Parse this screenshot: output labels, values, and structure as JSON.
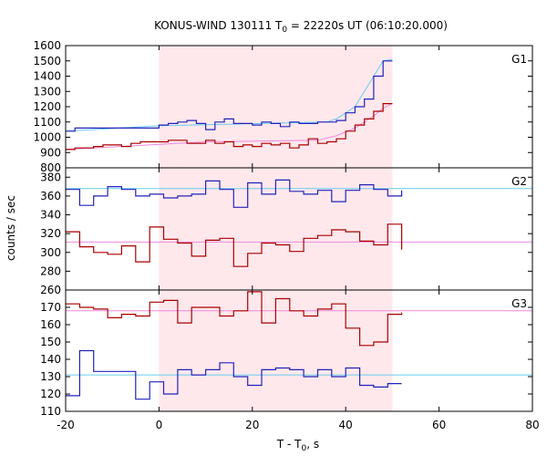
{
  "chart_data": {
    "type": "line",
    "title": "KONUS-WIND 130111 T",
    "title_sub": "0",
    "title_rest": " = 22220s UT (06:10:20.000)",
    "xlabel": "T - T",
    "xlabel_sub": "0",
    "xlabel_rest": ", s",
    "ylabel": "counts / sec",
    "xlim": [
      -20,
      80
    ],
    "x_ticks": [
      -20,
      0,
      20,
      40,
      60,
      80
    ],
    "shaded_interval": [
      0,
      50
    ],
    "colors": {
      "blue_step": "#2222bb",
      "blue_fit": "#66ccee",
      "red_step": "#aa0000",
      "red_fit": "#ee88dd",
      "shade": "#ffe8ec"
    },
    "panels": [
      {
        "name": "G1",
        "ylim": [
          800,
          1600
        ],
        "y_ticks": [
          800,
          900,
          1000,
          1100,
          1200,
          1300,
          1400,
          1500,
          1600
        ],
        "x_edges": [
          -20,
          -18,
          -16,
          -14,
          -12,
          -10,
          -8,
          -6,
          -4,
          -2,
          0,
          2,
          4,
          6,
          8,
          10,
          12,
          14,
          16,
          18,
          20,
          22,
          24,
          26,
          28,
          30,
          32,
          34,
          36,
          38,
          40,
          42,
          44,
          46,
          48,
          50
        ],
        "series": [
          {
            "color_role": "blue",
            "values": [
              1040,
              1060,
              1060,
              1060,
              1060,
              1060,
              1060,
              1060,
              1060,
              1060,
              1080,
              1090,
              1100,
              1110,
              1090,
              1050,
              1100,
              1120,
              1090,
              1090,
              1080,
              1100,
              1090,
              1070,
              1100,
              1090,
              1090,
              1100,
              1100,
              1110,
              1160,
              1200,
              1250,
              1400,
              1500
            ],
            "fit": [
              [
                -20,
                1040
              ],
              [
                0,
                1075
              ],
              [
                36,
                1100
              ],
              [
                38,
                1120
              ],
              [
                42,
                1200
              ],
              [
                44,
                1300
              ],
              [
                46,
                1400
              ],
              [
                48,
                1500
              ],
              [
                50,
                1510
              ]
            ]
          },
          {
            "color_role": "red",
            "values": [
              920,
              930,
              930,
              940,
              950,
              950,
              940,
              960,
              970,
              970,
              970,
              980,
              980,
              960,
              960,
              980,
              960,
              970,
              940,
              950,
              940,
              960,
              950,
              960,
              930,
              950,
              990,
              960,
              970,
              990,
              1040,
              1080,
              1120,
              1170,
              1220
            ],
            "fit": [
              [
                -20,
                920
              ],
              [
                10,
                970
              ],
              [
                34,
                980
              ],
              [
                38,
                1010
              ],
              [
                42,
                1060
              ],
              [
                46,
                1140
              ],
              [
                48,
                1190
              ],
              [
                50,
                1220
              ]
            ]
          }
        ]
      },
      {
        "name": "G2",
        "ylim": [
          260,
          390
        ],
        "y_ticks": [
          260,
          280,
          300,
          320,
          340,
          360,
          380
        ],
        "x_edges": [
          -20,
          -17,
          -14,
          -11,
          -8,
          -5,
          -2,
          1,
          4,
          7,
          10,
          13,
          16,
          19,
          22,
          25,
          28,
          31,
          34,
          37,
          40,
          43,
          46,
          49,
          52
        ],
        "series": [
          {
            "color_role": "blue",
            "values": [
              367,
              350,
              360,
              370,
              367,
              360,
              362,
              358,
              360,
              362,
              376,
              367,
              348,
              374,
              362,
              377,
              365,
              362,
              366,
              354,
              366,
              372,
              367,
              360,
              366
            ],
            "fit": [
              [
                -20,
                368
              ],
              [
                80,
                368
              ]
            ]
          },
          {
            "color_role": "red",
            "values": [
              322,
              306,
              300,
              298,
              307,
              290,
              327,
              314,
              310,
              296,
              313,
              315,
              285,
              299,
              310,
              308,
              301,
              315,
              318,
              324,
              322,
              312,
              308,
              330,
              303
            ],
            "fit": [
              [
                -20,
                311
              ],
              [
                80,
                311
              ]
            ]
          }
        ]
      },
      {
        "name": "G3",
        "ylim": [
          110,
          180
        ],
        "y_ticks": [
          110,
          120,
          130,
          140,
          150,
          160,
          170
        ],
        "x_edges": [
          -20,
          -17,
          -14,
          -11,
          -8,
          -5,
          -2,
          1,
          4,
          7,
          10,
          13,
          16,
          19,
          22,
          25,
          28,
          31,
          34,
          37,
          40,
          43,
          46,
          49,
          52
        ],
        "series": [
          {
            "color_role": "blue",
            "values": [
              119,
              145,
              133,
              133,
              133,
              117,
              127,
              120,
              134,
              131,
              134,
              138,
              130,
              125,
              134,
              135,
              134,
              130,
              134,
              130,
              135,
              125,
              124,
              126,
              126
            ],
            "fit": [
              [
                -20,
                131
              ],
              [
                80,
                131
              ]
            ]
          },
          {
            "color_role": "red",
            "values": [
              172,
              170,
              169,
              164,
              166,
              165,
              173,
              174,
              161,
              170,
              170,
              165,
              168,
              179,
              161,
              175,
              168,
              165,
              169,
              172,
              158,
              148,
              150,
              166,
              167
            ],
            "fit": [
              [
                -20,
                168
              ],
              [
                80,
                168
              ]
            ]
          }
        ]
      }
    ]
  }
}
